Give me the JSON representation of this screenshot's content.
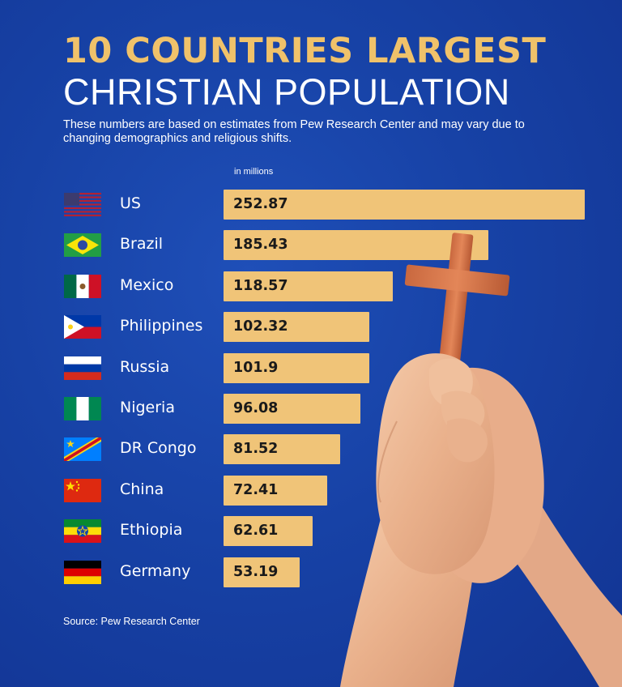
{
  "title_line1": "10 COUNTRIES LARGEST",
  "title_line2": "CHRISTIAN POPULATION",
  "subtitle": "These numbers are based on estimates from Pew Research Center and may vary due to changing demographics and religious shifts.",
  "source": "Source: Pew Research Center",
  "colors": {
    "bar": "#f0c478",
    "title_accent": "#f0c26a",
    "background": "#1742a6"
  },
  "chart_data": {
    "type": "bar",
    "orientation": "horizontal",
    "title": "10 COUNTRIES LARGEST CHRISTIAN POPULATION",
    "unit_label": "in millions",
    "categories": [
      "US",
      "Brazil",
      "Mexico",
      "Philippines",
      "Russia",
      "Nigeria",
      "DR Congo",
      "China",
      "Ethiopia",
      "Germany"
    ],
    "values": [
      252.87,
      185.43,
      118.57,
      102.32,
      101.9,
      96.08,
      81.52,
      72.41,
      62.61,
      53.19
    ],
    "value_labels": [
      "252.87",
      "185.43",
      "118.57",
      "102.32",
      "101.9",
      "96.08",
      "81.52",
      "72.41",
      "62.61",
      "53.19"
    ],
    "flags": [
      "us-flag-icon",
      "brazil-flag-icon",
      "mexico-flag-icon",
      "philippines-flag-icon",
      "russia-flag-icon",
      "nigeria-flag-icon",
      "dr-congo-flag-icon",
      "china-flag-icon",
      "ethiopia-flag-icon",
      "germany-flag-icon"
    ],
    "xlim": [
      0,
      252.87
    ],
    "grid": false,
    "legend": "none"
  }
}
